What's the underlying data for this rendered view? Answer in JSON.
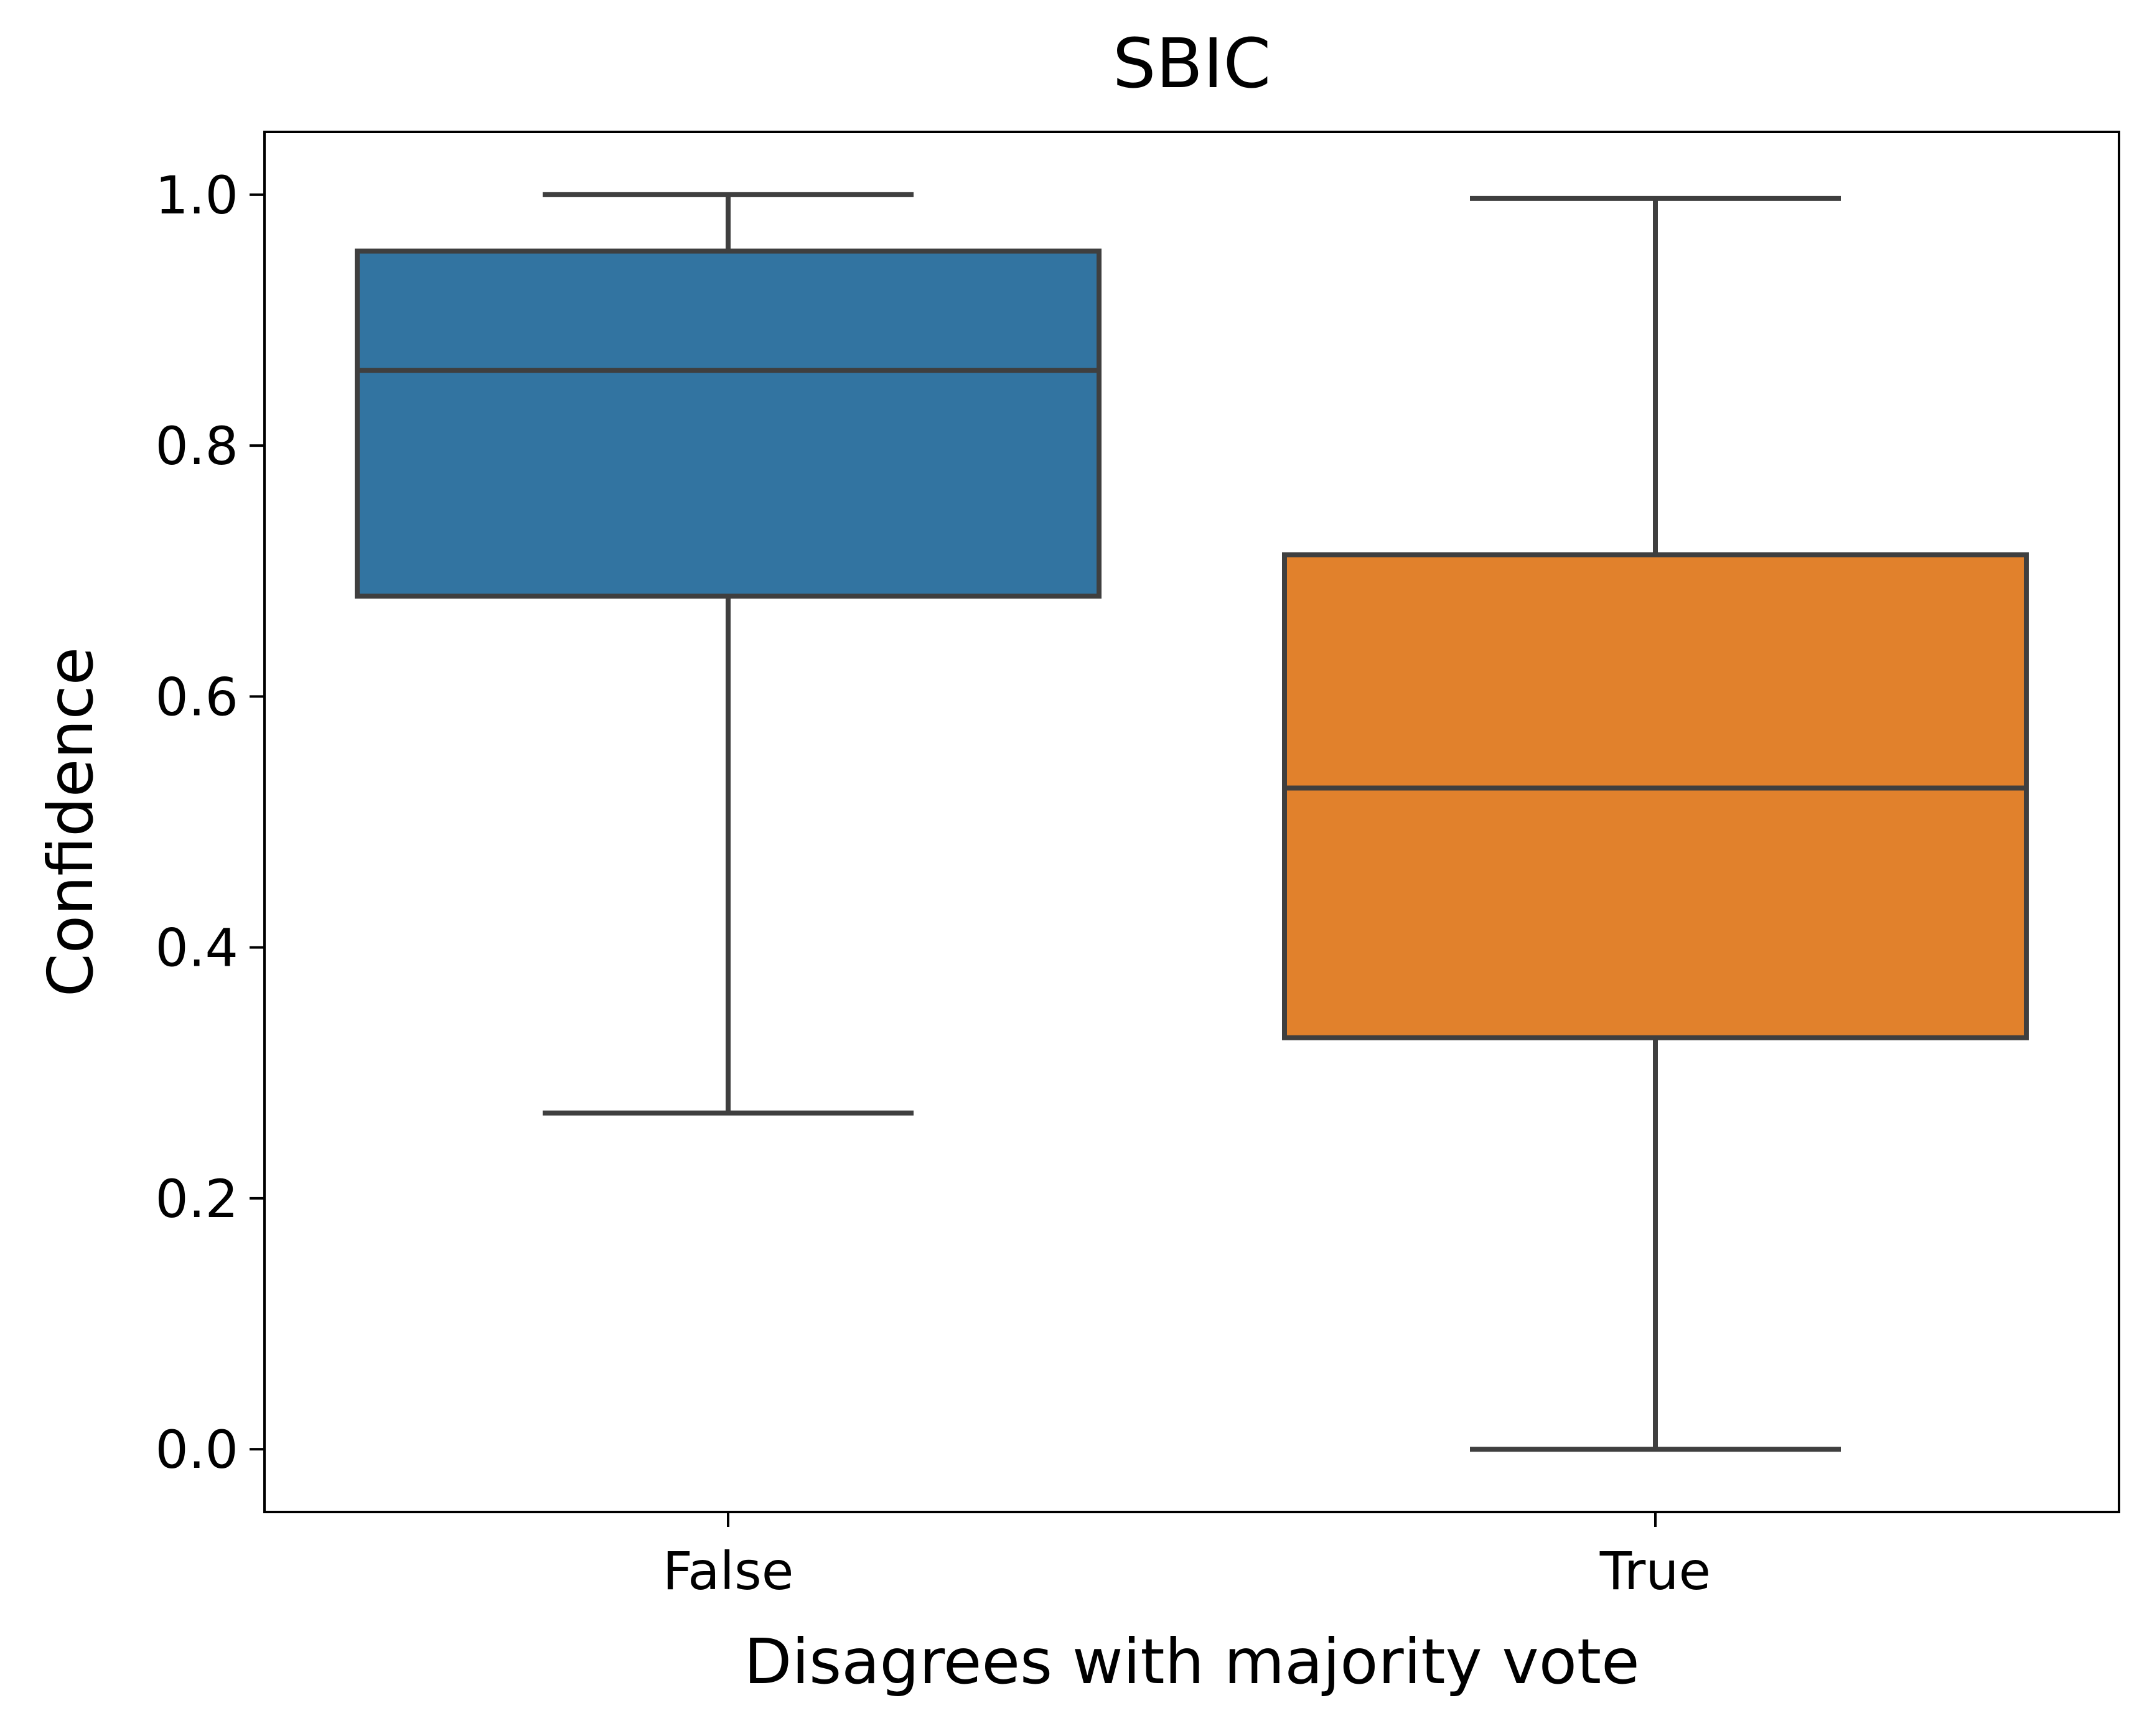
{
  "chart_data": {
    "type": "box",
    "title": "SBIC",
    "xlabel": "Disagrees with majority vote",
    "ylabel": "Confidence",
    "ylim": [
      -0.05,
      1.05
    ],
    "yticks": [
      "0.0",
      "0.2",
      "0.4",
      "0.6",
      "0.8",
      "1.0"
    ],
    "categories": [
      "False",
      "True"
    ],
    "boxes": [
      {
        "category": "False",
        "whisker_low": 0.268,
        "q1": 0.68,
        "median": 0.86,
        "q3": 0.955,
        "whisker_high": 1.0,
        "color": "#3274a1"
      },
      {
        "category": "True",
        "whisker_low": 0.0,
        "q1": 0.328,
        "median": 0.527,
        "q3": 0.713,
        "whisker_high": 0.997,
        "color": "#e1812c"
      }
    ],
    "grid": false,
    "legend": "none",
    "line_color": "#3f3f3f"
  }
}
